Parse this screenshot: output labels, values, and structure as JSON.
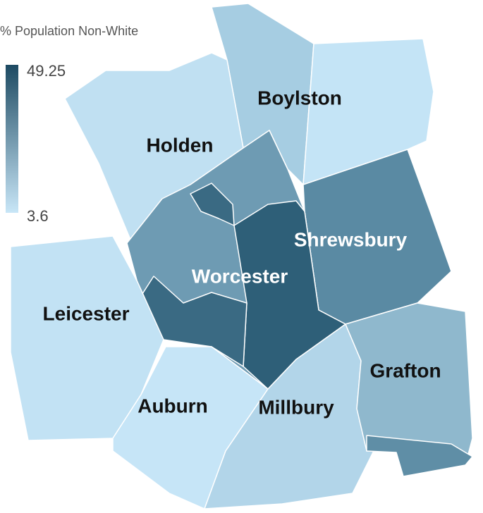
{
  "legend": {
    "title": "% Population Non-White",
    "max": 49.25,
    "min": 3.6
  },
  "labels": [
    "Boylston",
    "Holden",
    "Shrewsbury",
    "Worcester",
    "Leicester",
    "Grafton",
    "Auburn",
    "Millbury"
  ]
}
